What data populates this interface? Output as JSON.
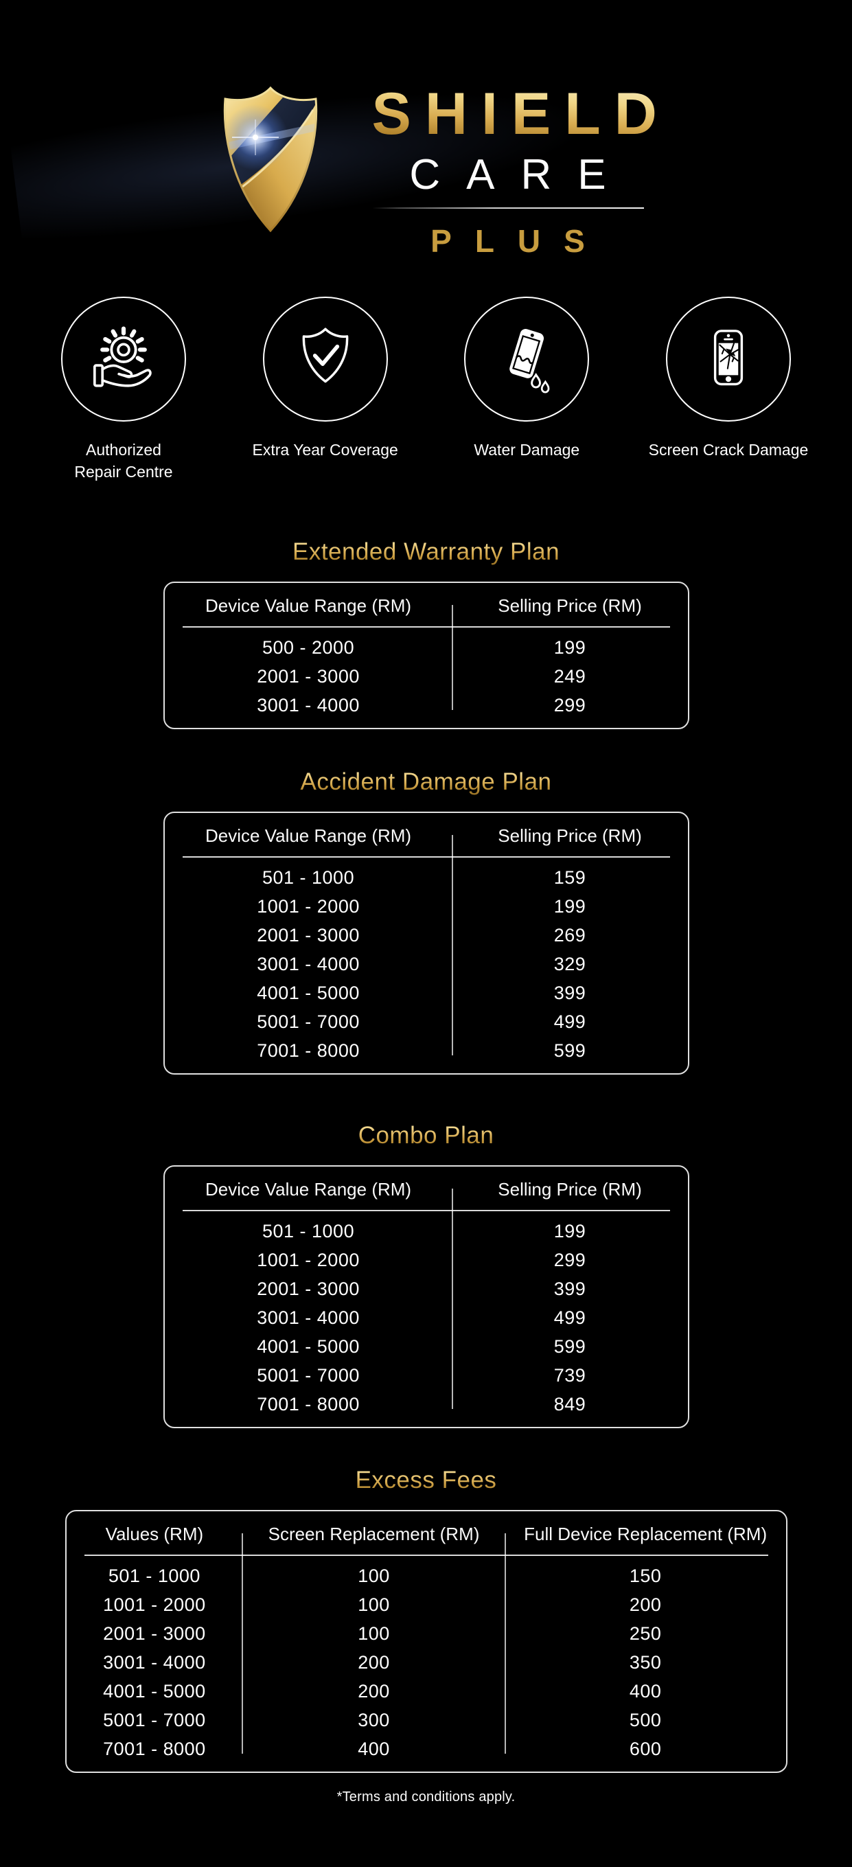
{
  "logo": {
    "title": "SHIELD",
    "subtitle": "CARE",
    "badge": "PLUS"
  },
  "features": [
    {
      "icon": "repair-centre-icon",
      "label": "Authorized Repair Centre"
    },
    {
      "icon": "shield-check-icon",
      "label": "Extra Year Coverage"
    },
    {
      "icon": "water-damage-icon",
      "label": "Water Damage"
    },
    {
      "icon": "screen-crack-icon",
      "label": "Screen Crack Damage"
    }
  ],
  "tables": [
    {
      "title": "Extended Warranty Plan",
      "headers": [
        "Device Value Range (RM)",
        "Selling Price (RM)"
      ],
      "rows": [
        [
          "500 - 2000",
          "199"
        ],
        [
          "2001 - 3000",
          "249"
        ],
        [
          "3001 - 4000",
          "299"
        ]
      ]
    },
    {
      "title": "Accident Damage Plan",
      "headers": [
        "Device Value Range (RM)",
        "Selling Price (RM)"
      ],
      "rows": [
        [
          "501 - 1000",
          "159"
        ],
        [
          "1001 - 2000",
          "199"
        ],
        [
          "2001 - 3000",
          "269"
        ],
        [
          "3001 - 4000",
          "329"
        ],
        [
          "4001 - 5000",
          "399"
        ],
        [
          "5001 - 7000",
          "499"
        ],
        [
          "7001 - 8000",
          "599"
        ]
      ]
    },
    {
      "title": "Combo Plan",
      "headers": [
        "Device Value Range (RM)",
        "Selling Price (RM)"
      ],
      "rows": [
        [
          "501 - 1000",
          "199"
        ],
        [
          "1001 - 2000",
          "299"
        ],
        [
          "2001 - 3000",
          "399"
        ],
        [
          "3001 - 4000",
          "499"
        ],
        [
          "4001 - 5000",
          "599"
        ],
        [
          "5001 - 7000",
          "739"
        ],
        [
          "7001 - 8000",
          "849"
        ]
      ]
    },
    {
      "title": "Excess Fees",
      "headers": [
        "Values (RM)",
        "Screen Replacement (RM)",
        "Full Device Replacement (RM)"
      ],
      "rows": [
        [
          "501 - 1000",
          "100",
          "150"
        ],
        [
          "1001 - 2000",
          "100",
          "200"
        ],
        [
          "2001 - 3000",
          "100",
          "250"
        ],
        [
          "3001 - 4000",
          "200",
          "350"
        ],
        [
          "4001 - 5000",
          "200",
          "400"
        ],
        [
          "5001 - 7000",
          "300",
          "500"
        ],
        [
          "7001 - 8000",
          "400",
          "600"
        ]
      ]
    }
  ],
  "footer": {
    "note": "*Terms and conditions apply."
  },
  "colors": {
    "background": "#000000",
    "gold": "#C89D3F",
    "gold_light": "#F6E3A1",
    "gold_dark": "#936D22",
    "text": "#FFFFFF",
    "navy_shield": "#1C2740",
    "flare_blue": "#82A5FF"
  }
}
